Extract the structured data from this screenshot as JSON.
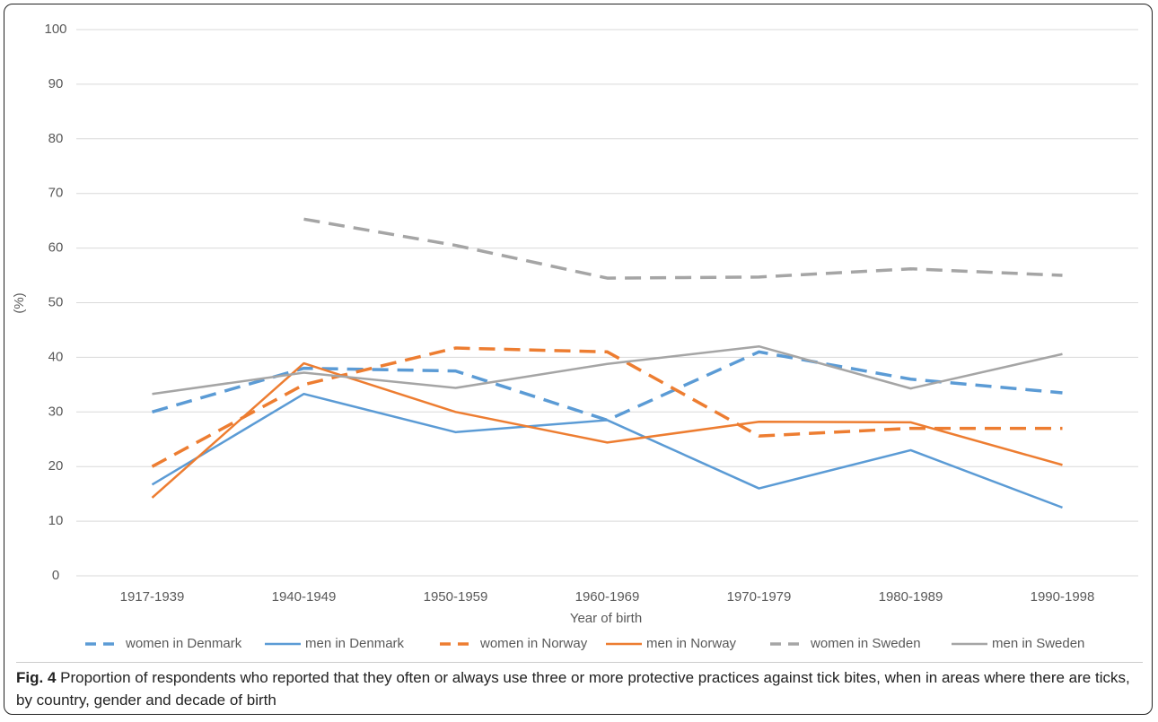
{
  "chart_data": {
    "type": "line",
    "y_label": "(%)",
    "x_label": "Year of birth",
    "categories": [
      "1917-1939",
      "1940-1949",
      "1950-1959",
      "1960-1969",
      "1970-1979",
      "1980-1989",
      "1990-1998"
    ],
    "series": [
      {
        "name": "women in Denmark",
        "color": "#5b9bd5",
        "dashed": true,
        "values": [
          30,
          38,
          37.5,
          28.5,
          41,
          36,
          33.5
        ]
      },
      {
        "name": "men in Denmark",
        "color": "#5b9bd5",
        "dashed": false,
        "values": [
          16.7,
          33.3,
          26.3,
          28.5,
          16,
          23,
          12.5
        ]
      },
      {
        "name": "women in Norway",
        "color": "#ed7d31",
        "dashed": true,
        "values": [
          20,
          35,
          41.7,
          41,
          25.6,
          27,
          27
        ]
      },
      {
        "name": "men in Norway",
        "color": "#ed7d31",
        "dashed": false,
        "values": [
          14.3,
          38.9,
          30,
          24.4,
          28.2,
          28.1,
          20.3
        ]
      },
      {
        "name": "women in Sweden",
        "color": "#a5a5a5",
        "dashed": true,
        "values": [
          null,
          65.3,
          60.5,
          54.5,
          54.7,
          56.2,
          55
        ]
      },
      {
        "name": "men in Sweden",
        "color": "#a5a5a5",
        "dashed": false,
        "values": [
          33.3,
          37.2,
          34.4,
          38.8,
          42,
          34.3,
          40.6
        ]
      }
    ],
    "ylim": [
      0,
      100
    ],
    "yticks": [
      0,
      10,
      20,
      30,
      40,
      50,
      60,
      70,
      80,
      90,
      100
    ],
    "grid": true,
    "legend": "bottom",
    "caption": {
      "label": "Fig. 4",
      "text": "Proportion of respondents who reported that they often or always use three or more protective practices against tick bites, when in areas where there are ticks, by country, gender and decade of birth"
    }
  }
}
